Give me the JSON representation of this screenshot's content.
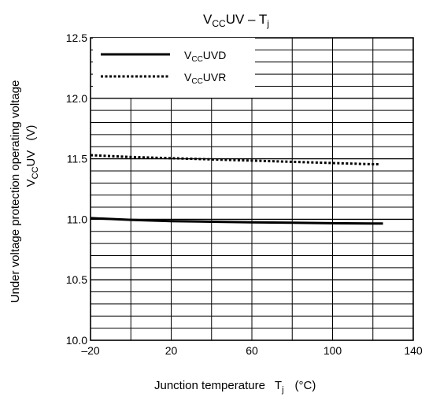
{
  "chart_data": {
    "type": "line",
    "title": {
      "main": "V",
      "sub": "CC",
      "mid": "UV – T",
      "sub2": "j"
    },
    "xlabel": {
      "main": "Junction temperature",
      "sym": "T",
      "sub": "j",
      "unit": "(°C)"
    },
    "ylabel": {
      "line1": "Under voltage protection operating voltage",
      "sym": "V",
      "sub": "CC",
      "rest": "UV",
      "unit": "(V)"
    },
    "xlim": [
      -20,
      140
    ],
    "ylim": [
      10.0,
      12.5
    ],
    "x_ticks": [
      -20,
      20,
      60,
      100,
      140
    ],
    "x_tick_labels": [
      "–20",
      "20",
      "60",
      "100",
      "140"
    ],
    "y_ticks": [
      10.0,
      10.5,
      11.0,
      11.5,
      12.0,
      12.5
    ],
    "y_tick_labels": [
      "10.0",
      "10.5",
      "11.0",
      "11.5",
      "12.0",
      "12.5"
    ],
    "grid": true,
    "legend_position": "top-left",
    "series": [
      {
        "legend": {
          "main": "V",
          "sub": "CC",
          "rest": "UVD"
        },
        "style": "solid",
        "x": [
          -20,
          0,
          20,
          40,
          60,
          80,
          100,
          120,
          125
        ],
        "y": [
          11.01,
          10.995,
          10.985,
          10.98,
          10.975,
          10.972,
          10.968,
          10.965,
          10.965
        ]
      },
      {
        "legend": {
          "main": "V",
          "sub": "CC",
          "rest": "UVR"
        },
        "style": "dotted",
        "x": [
          -20,
          0,
          20,
          40,
          60,
          80,
          100,
          120,
          123
        ],
        "y": [
          11.53,
          11.515,
          11.505,
          11.495,
          11.485,
          11.475,
          11.465,
          11.455,
          11.455
        ]
      }
    ]
  }
}
